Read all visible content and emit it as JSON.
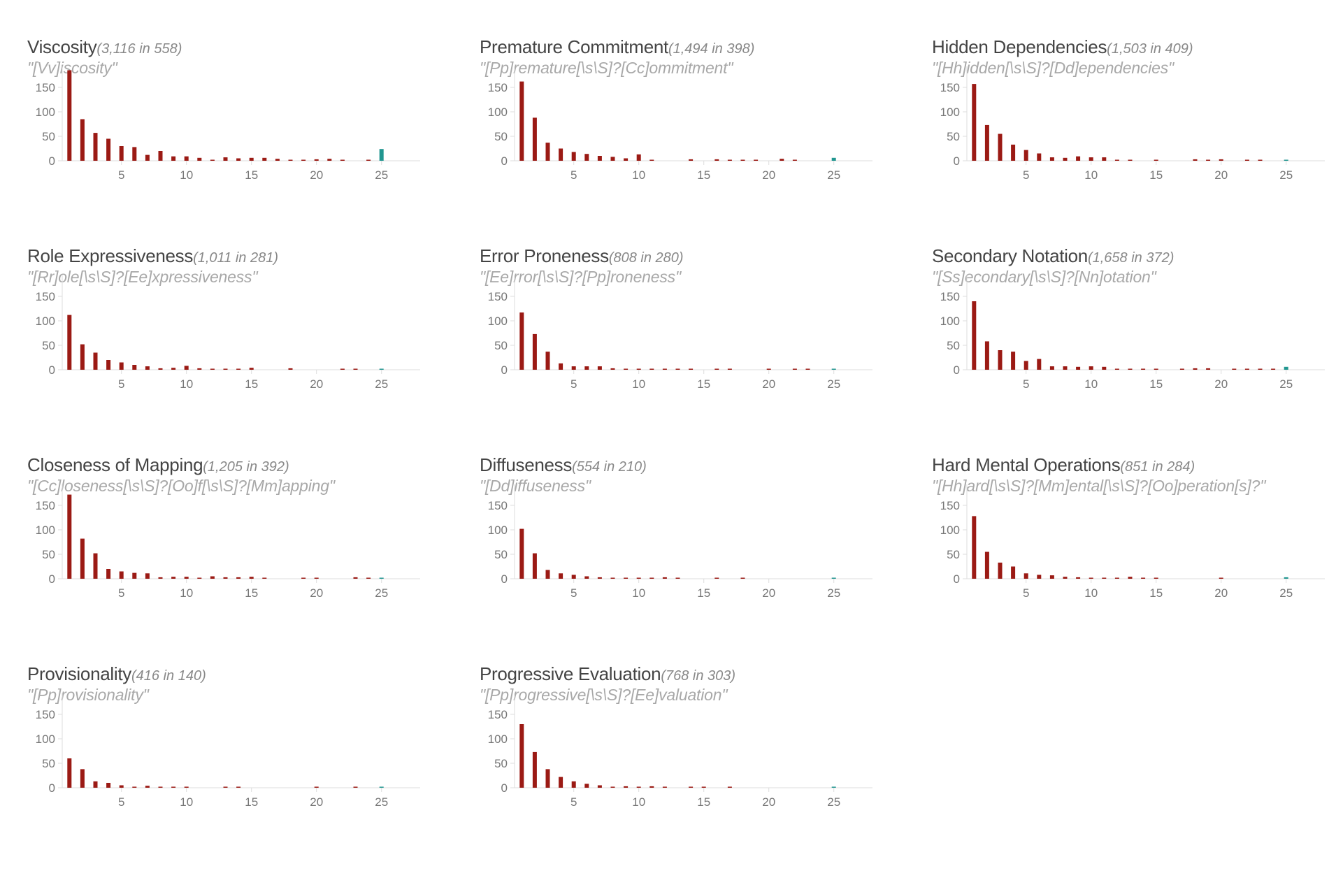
{
  "colors": {
    "base": "#9b1a14",
    "highlight": "#219690",
    "axis": "#dddddd",
    "tick_text": "#777777"
  },
  "panels": [
    {
      "name": "Viscosity",
      "count_text": "(3,116 in 558)",
      "regex": "\"[Vv]iscosity\""
    },
    {
      "name": "Premature Commitment",
      "count_text": "(1,494 in 398)",
      "regex": "\"[Pp]remature[\\s\\S]?[Cc]ommitment\""
    },
    {
      "name": "Hidden Dependencies",
      "count_text": "(1,503 in 409)",
      "regex": "\"[Hh]idden[\\s\\S]?[Dd]ependencies\""
    },
    {
      "name": "Role Expressiveness",
      "count_text": "(1,011 in 281)",
      "regex": "\"[Rr]ole[\\s\\S]?[Ee]xpressiveness\""
    },
    {
      "name": "Error Proneness",
      "count_text": "(808 in 280)",
      "regex": "\"[Ee]rror[\\s\\S]?[Pp]roneness\""
    },
    {
      "name": "Secondary Notation",
      "count_text": "(1,658 in 372)",
      "regex": "\"[Ss]econdary[\\s\\S]?[Nn]otation\""
    },
    {
      "name": "Closeness of Mapping",
      "count_text": "(1,205 in 392)",
      "regex": "\"[Cc]loseness[\\s\\S]?[Oo]f[\\s\\S]?[Mm]apping\""
    },
    {
      "name": "Diffuseness",
      "count_text": "(554 in 210)",
      "regex": "\"[Dd]iffuseness\""
    },
    {
      "name": "Hard Mental Operations",
      "count_text": "(851 in 284)",
      "regex": "\"[Hh]ard[\\s\\S]?[Mm]ental[\\s\\S]?[Oo]peration[s]?\""
    },
    {
      "name": "Provisionality",
      "count_text": "(416 in 140)",
      "regex": "\"[Pp]rovisionality\""
    },
    {
      "name": "Progressive Evaluation",
      "count_text": "(768 in 303)",
      "regex": "\"[Pp]rogressive[\\s\\S]?[Ee]valuation\""
    }
  ],
  "chart_data": [
    {
      "type": "bar",
      "x": [
        1,
        2,
        3,
        4,
        5,
        6,
        7,
        8,
        9,
        10,
        11,
        12,
        13,
        14,
        15,
        16,
        17,
        18,
        19,
        20,
        21,
        22,
        23,
        24,
        25,
        26,
        27,
        28
      ],
      "values": [
        185,
        85,
        57,
        45,
        30,
        28,
        12,
        20,
        9,
        9,
        6,
        1,
        7,
        5,
        6,
        6,
        4,
        1,
        2,
        3,
        4,
        1,
        0,
        1,
        24,
        0,
        0,
        0
      ],
      "highlight_x": 25,
      "xticks": [
        5,
        10,
        15,
        20,
        25
      ],
      "yticks": [
        0,
        50,
        100,
        150
      ],
      "ylim": [
        0,
        190
      ]
    },
    {
      "type": "bar",
      "x": [
        1,
        2,
        3,
        4,
        5,
        6,
        7,
        8,
        9,
        10,
        11,
        12,
        13,
        14,
        15,
        16,
        17,
        18,
        19,
        20,
        21,
        22,
        23,
        24,
        25,
        26,
        27,
        28
      ],
      "values": [
        162,
        88,
        37,
        25,
        18,
        14,
        10,
        8,
        5,
        13,
        2,
        0,
        0,
        3,
        0,
        3,
        1,
        1,
        2,
        0,
        4,
        1,
        0,
        0,
        6,
        0,
        0,
        0
      ],
      "highlight_x": 25,
      "xticks": [
        5,
        10,
        15,
        20,
        25
      ],
      "yticks": [
        0,
        50,
        100,
        150
      ],
      "ylim": [
        0,
        190
      ]
    },
    {
      "type": "bar",
      "x": [
        1,
        2,
        3,
        4,
        5,
        6,
        7,
        8,
        9,
        10,
        11,
        12,
        13,
        14,
        15,
        16,
        17,
        18,
        19,
        20,
        21,
        22,
        23,
        24,
        25,
        26,
        27,
        28
      ],
      "values": [
        157,
        73,
        55,
        33,
        22,
        15,
        7,
        6,
        9,
        7,
        7,
        1,
        2,
        0,
        1,
        0,
        0,
        3,
        1,
        3,
        0,
        1,
        1,
        0,
        2,
        0,
        0,
        0
      ],
      "highlight_x": 25,
      "xticks": [
        5,
        10,
        15,
        20,
        25
      ],
      "yticks": [
        0,
        50,
        100,
        150
      ],
      "ylim": [
        0,
        190
      ]
    },
    {
      "type": "bar",
      "x": [
        1,
        2,
        3,
        4,
        5,
        6,
        7,
        8,
        9,
        10,
        11,
        12,
        13,
        14,
        15,
        16,
        17,
        18,
        19,
        20,
        21,
        22,
        23,
        24,
        25,
        26,
        27,
        28
      ],
      "values": [
        112,
        52,
        35,
        20,
        15,
        10,
        7,
        3,
        4,
        8,
        3,
        2,
        2,
        2,
        4,
        0,
        0,
        3,
        0,
        0,
        0,
        1,
        1,
        0,
        2,
        0,
        0,
        0
      ],
      "highlight_x": 25,
      "xticks": [
        5,
        10,
        15,
        20,
        25
      ],
      "yticks": [
        0,
        50,
        100,
        150
      ],
      "ylim": [
        0,
        190
      ]
    },
    {
      "type": "bar",
      "x": [
        1,
        2,
        3,
        4,
        5,
        6,
        7,
        8,
        9,
        10,
        11,
        12,
        13,
        14,
        15,
        16,
        17,
        18,
        19,
        20,
        21,
        22,
        23,
        24,
        25,
        26,
        27,
        28
      ],
      "values": [
        117,
        73,
        37,
        13,
        7,
        7,
        7,
        3,
        1,
        1,
        1,
        1,
        2,
        1,
        0,
        1,
        1,
        0,
        0,
        1,
        0,
        1,
        1,
        0,
        1,
        0,
        0,
        0
      ],
      "highlight_x": 25,
      "xticks": [
        5,
        10,
        15,
        20,
        25
      ],
      "yticks": [
        0,
        50,
        100,
        150
      ],
      "ylim": [
        0,
        190
      ]
    },
    {
      "type": "bar",
      "x": [
        1,
        2,
        3,
        4,
        5,
        6,
        7,
        8,
        9,
        10,
        11,
        12,
        13,
        14,
        15,
        16,
        17,
        18,
        19,
        20,
        21,
        22,
        23,
        24,
        25,
        26,
        27,
        28
      ],
      "values": [
        140,
        58,
        40,
        37,
        18,
        22,
        7,
        7,
        6,
        7,
        6,
        2,
        2,
        1,
        1,
        0,
        1,
        3,
        3,
        0,
        1,
        1,
        1,
        1,
        6,
        0,
        0,
        0
      ],
      "highlight_x": 25,
      "xticks": [
        5,
        10,
        15,
        20,
        25
      ],
      "yticks": [
        0,
        50,
        100,
        150
      ],
      "ylim": [
        0,
        190
      ]
    },
    {
      "type": "bar",
      "x": [
        1,
        2,
        3,
        4,
        5,
        6,
        7,
        8,
        9,
        10,
        11,
        12,
        13,
        14,
        15,
        16,
        17,
        18,
        19,
        20,
        21,
        22,
        23,
        24,
        25,
        26,
        27,
        28
      ],
      "values": [
        172,
        82,
        52,
        20,
        15,
        12,
        11,
        3,
        4,
        4,
        1,
        5,
        3,
        3,
        4,
        2,
        0,
        0,
        1,
        1,
        0,
        0,
        3,
        1,
        0,
        0,
        0,
        0
      ],
      "highlight_x": 25,
      "xticks": [
        5,
        10,
        15,
        20,
        25
      ],
      "yticks": [
        0,
        50,
        100,
        150
      ],
      "ylim": [
        0,
        190
      ]
    },
    {
      "type": "bar",
      "x": [
        1,
        2,
        3,
        4,
        5,
        6,
        7,
        8,
        9,
        10,
        11,
        12,
        13,
        14,
        15,
        16,
        17,
        18,
        19,
        20,
        21,
        22,
        23,
        24,
        25,
        26,
        27,
        28
      ],
      "values": [
        102,
        52,
        18,
        11,
        8,
        5,
        3,
        1,
        2,
        2,
        1,
        3,
        1,
        0,
        0,
        1,
        0,
        1,
        0,
        0,
        0,
        0,
        0,
        0,
        1,
        0,
        0,
        0
      ],
      "highlight_x": 25,
      "xticks": [
        5,
        10,
        15,
        20,
        25
      ],
      "yticks": [
        0,
        50,
        100,
        150
      ],
      "ylim": [
        0,
        190
      ]
    },
    {
      "type": "bar",
      "x": [
        1,
        2,
        3,
        4,
        5,
        6,
        7,
        8,
        9,
        10,
        11,
        12,
        13,
        14,
        15,
        16,
        17,
        18,
        19,
        20,
        21,
        22,
        23,
        24,
        25,
        26,
        27,
        28
      ],
      "values": [
        128,
        55,
        33,
        25,
        11,
        8,
        7,
        4,
        3,
        1,
        1,
        2,
        4,
        2,
        1,
        0,
        0,
        0,
        0,
        1,
        0,
        0,
        0,
        0,
        3,
        0,
        0,
        0
      ],
      "highlight_x": 25,
      "xticks": [
        5,
        10,
        15,
        20,
        25
      ],
      "yticks": [
        0,
        50,
        100,
        150
      ],
      "ylim": [
        0,
        190
      ]
    },
    {
      "type": "bar",
      "x": [
        1,
        2,
        3,
        4,
        5,
        6,
        7,
        8,
        9,
        10,
        11,
        12,
        13,
        14,
        15,
        16,
        17,
        18,
        19,
        20,
        21,
        22,
        23,
        24,
        25,
        26,
        27,
        28
      ],
      "values": [
        60,
        38,
        13,
        10,
        5,
        1,
        4,
        1,
        1,
        1,
        0,
        0,
        1,
        1,
        0,
        0,
        0,
        0,
        0,
        1,
        0,
        0,
        1,
        0,
        1,
        0,
        0,
        0
      ],
      "highlight_x": 25,
      "xticks": [
        5,
        10,
        15,
        20,
        25
      ],
      "yticks": [
        0,
        50,
        100,
        150
      ],
      "ylim": [
        0,
        190
      ]
    },
    {
      "type": "bar",
      "x": [
        1,
        2,
        3,
        4,
        5,
        6,
        7,
        8,
        9,
        10,
        11,
        12,
        13,
        14,
        15,
        16,
        17,
        18,
        19,
        20,
        21,
        22,
        23,
        24,
        25,
        26,
        27,
        28
      ],
      "values": [
        130,
        73,
        38,
        22,
        13,
        8,
        5,
        2,
        3,
        2,
        3,
        2,
        0,
        1,
        1,
        0,
        1,
        0,
        0,
        0,
        0,
        0,
        0,
        0,
        0,
        0,
        0,
        0
      ],
      "highlight_x": 25,
      "xticks": [
        5,
        10,
        15,
        20,
        25
      ],
      "yticks": [
        0,
        50,
        100,
        150
      ],
      "ylim": [
        0,
        190
      ]
    }
  ]
}
